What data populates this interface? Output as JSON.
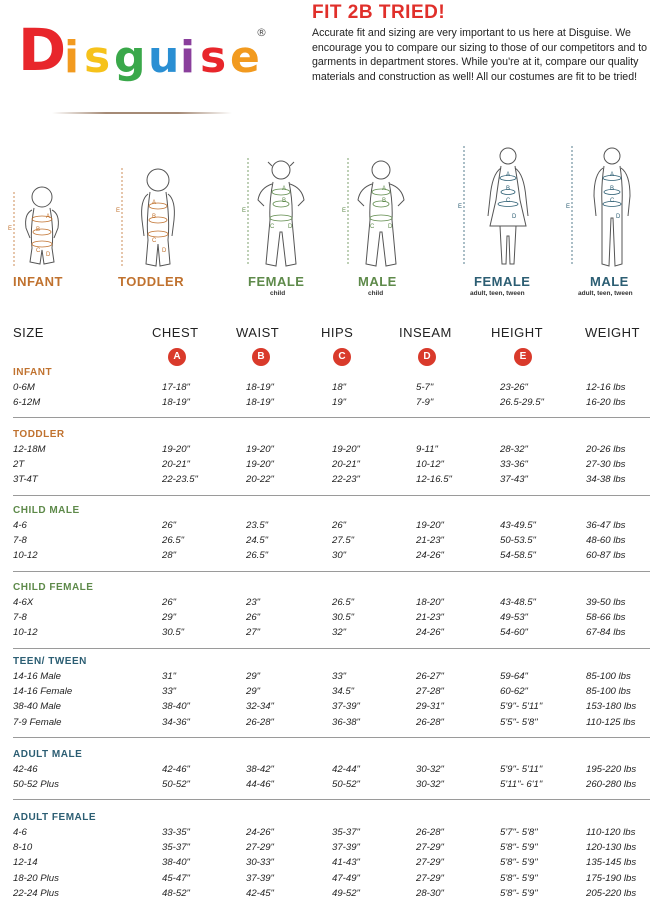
{
  "brand": {
    "logo_text": "Disguise",
    "logo_letters": [
      "D",
      "i",
      "s",
      "g",
      "u",
      "i",
      "s",
      "e"
    ],
    "logo_colors": [
      "#e8262b",
      "#f29a1f",
      "#f6c21b",
      "#3aa84a",
      "#2a8fd3",
      "#8a3f9c",
      "#e8262b",
      "#f29a1f"
    ],
    "registered": "®"
  },
  "intro": {
    "title": "FIT 2B TRIED!",
    "text": "Accurate fit and sizing are very important to us here at Disguise. We encourage you to compare our sizing to those of our competitors and to garments in department stores. While you're at it, compare our quality materials and construction as well! All our costumes are fit to be tried!"
  },
  "figures": [
    {
      "label": "INFANT",
      "sub": "",
      "color": "#c0722f"
    },
    {
      "label": "TODDLER",
      "sub": "",
      "color": "#c0722f"
    },
    {
      "label": "FEMALE",
      "sub": "child",
      "color": "#5e8a4a"
    },
    {
      "label": "MALE",
      "sub": "child",
      "color": "#5e8a4a"
    },
    {
      "label": "FEMALE",
      "sub": "adult, teen, tween",
      "color": "#2c5e73"
    },
    {
      "label": "MALE",
      "sub": "adult, teen, tween",
      "color": "#2c5e73"
    }
  ],
  "figure_markers": {
    "a": "A",
    "b": "B",
    "c": "C",
    "d": "D",
    "e": "E"
  },
  "table": {
    "headers": [
      "SIZE",
      "CHEST",
      "WAIST",
      "HIPS",
      "INSEAM",
      "HEIGHT",
      "WEIGHT"
    ],
    "badges": [
      "A",
      "B",
      "C",
      "D",
      "E"
    ],
    "sections": [
      {
        "title": "INFANT",
        "color": "#c0722f",
        "rows": [
          [
            "0-6M",
            "17-18\"",
            "18-19\"",
            "18\"",
            "5-7\"",
            "23-26\"",
            "12-16 lbs"
          ],
          [
            "6-12M",
            "18-19\"",
            "18-19\"",
            "19\"",
            "7-9\"",
            "26.5-29.5\"",
            "16-20 lbs"
          ]
        ]
      },
      {
        "title": "TODDLER",
        "color": "#c0722f",
        "rows": [
          [
            "12-18M",
            "19-20\"",
            "19-20\"",
            "19-20\"",
            "9-11\"",
            "28-32\"",
            "20-26 lbs"
          ],
          [
            "2T",
            "20-21\"",
            "19-20\"",
            "20-21\"",
            "10-12\"",
            "33-36\"",
            "27-30 lbs"
          ],
          [
            "3T-4T",
            "22-23.5\"",
            "20-22\"",
            "22-23\"",
            "12-16.5\"",
            "37-43\"",
            "34-38 lbs"
          ]
        ]
      },
      {
        "title": "CHILD MALE",
        "color": "#5e8a4a",
        "rows": [
          [
            "4-6",
            "26\"",
            "23.5\"",
            "26\"",
            "19-20\"",
            "43-49.5\"",
            "36-47 lbs"
          ],
          [
            "7-8",
            "26.5\"",
            "24.5\"",
            "27.5\"",
            "21-23\"",
            "50-53.5\"",
            "48-60 lbs"
          ],
          [
            "10-12",
            "28\"",
            "26.5\"",
            "30\"",
            "24-26\"",
            "54-58.5\"",
            "60-87 lbs"
          ]
        ]
      },
      {
        "title": "CHILD FEMALE",
        "color": "#5e8a4a",
        "rows": [
          [
            "4-6X",
            "26\"",
            "23\"",
            "26.5\"",
            "18-20\"",
            "43-48.5\"",
            "39-50 lbs"
          ],
          [
            "7-8",
            "29\"",
            "26\"",
            "30.5\"",
            "21-23\"",
            "49-53\"",
            "58-66 lbs"
          ],
          [
            "10-12",
            "30.5\"",
            "27\"",
            "32\"",
            "24-26\"",
            "54-60\"",
            "67-84 lbs"
          ]
        ]
      },
      {
        "title": "TEEN/ TWEEN",
        "color": "#2c5e73",
        "rows": [
          [
            "14-16 Male",
            "31\"",
            "29\"",
            "33\"",
            "26-27\"",
            "59-64\"",
            "85-100 lbs"
          ],
          [
            "14-16 Female",
            "33\"",
            "29\"",
            "34.5\"",
            "27-28\"",
            "60-62\"",
            "85-100 lbs"
          ],
          [
            "38-40 Male",
            "38-40\"",
            "32-34\"",
            "37-39\"",
            "29-31\"",
            "5'9\"- 5'11\"",
            "153-180 lbs"
          ],
          [
            "7-9 Female",
            "34-36\"",
            "26-28\"",
            "36-38\"",
            "26-28\"",
            "5'5\"- 5'8\"",
            "110-125 lbs"
          ]
        ]
      },
      {
        "title": "ADULT MALE",
        "color": "#2c5e73",
        "rows": [
          [
            "42-46",
            "42-46\"",
            "38-42\"",
            "42-44\"",
            "30-32\"",
            "5'9\"- 5'11\"",
            "195-220 lbs"
          ],
          [
            "50-52 Plus",
            "50-52\"",
            "44-46\"",
            "50-52\"",
            "30-32\"",
            "5'11\"- 6'1\"",
            "260-280 lbs"
          ]
        ]
      },
      {
        "title": "ADULT FEMALE",
        "color": "#2c5e73",
        "rows": [
          [
            "4-6",
            "33-35\"",
            "24-26\"",
            "35-37\"",
            "26-28\"",
            "5'7\"- 5'8\"",
            "110-120 lbs"
          ],
          [
            "8-10",
            "35-37\"",
            "27-29\"",
            "37-39\"",
            "27-29\"",
            "5'8\"- 5'9\"",
            "120-130 lbs"
          ],
          [
            "12-14",
            "38-40\"",
            "30-33\"",
            "41-43\"",
            "27-29\"",
            "5'8\"- 5'9\"",
            "135-145 lbs"
          ],
          [
            "18-20 Plus",
            "45-47\"",
            "37-39\"",
            "47-49\"",
            "27-29\"",
            "5'8\"- 5'9\"",
            "175-190 lbs"
          ],
          [
            "22-24 Plus",
            "48-52\"",
            "42-45\"",
            "49-52\"",
            "28-30\"",
            "5'8\"- 5'9\"",
            "205-220 lbs"
          ]
        ]
      }
    ]
  }
}
